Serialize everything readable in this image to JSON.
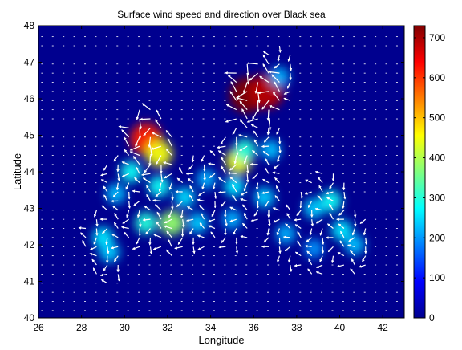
{
  "chart_data": {
    "type": "heatmap",
    "title": "Surface wind speed and direction over Black sea",
    "xlabel": "Longitude",
    "ylabel": "Latitude",
    "xlim": [
      26,
      43
    ],
    "ylim": [
      40,
      48
    ],
    "xticks": [
      26,
      28,
      30,
      32,
      34,
      36,
      38,
      40,
      42
    ],
    "yticks": [
      40,
      41,
      42,
      43,
      44,
      45,
      46,
      47,
      48
    ],
    "colorbar": {
      "min": 0,
      "max": 730,
      "ticks": [
        0,
        100,
        200,
        300,
        400,
        500,
        600,
        700
      ],
      "colormap": "jet"
    },
    "overlay": "wind direction arrows (white)",
    "grid": false,
    "colors": {
      "background_low": "#00008f",
      "arrow": "#ffffff"
    },
    "hotspots": [
      {
        "lon": 31.0,
        "lat": 44.9,
        "value": 620
      },
      {
        "lon": 31.6,
        "lat": 44.5,
        "value": 450
      },
      {
        "lon": 30.3,
        "lat": 44.0,
        "value": 280
      },
      {
        "lon": 29.6,
        "lat": 43.4,
        "value": 230
      },
      {
        "lon": 29.0,
        "lat": 42.2,
        "value": 260
      },
      {
        "lon": 29.3,
        "lat": 41.8,
        "value": 240
      },
      {
        "lon": 31.0,
        "lat": 42.6,
        "value": 300
      },
      {
        "lon": 32.2,
        "lat": 42.6,
        "value": 380
      },
      {
        "lon": 32.8,
        "lat": 43.3,
        "value": 250
      },
      {
        "lon": 31.6,
        "lat": 43.6,
        "value": 280
      },
      {
        "lon": 33.4,
        "lat": 42.6,
        "value": 240
      },
      {
        "lon": 33.8,
        "lat": 43.8,
        "value": 220
      },
      {
        "lon": 35.1,
        "lat": 43.6,
        "value": 260
      },
      {
        "lon": 35.3,
        "lat": 44.3,
        "value": 440
      },
      {
        "lon": 35.6,
        "lat": 44.6,
        "value": 300
      },
      {
        "lon": 35.0,
        "lat": 42.7,
        "value": 220
      },
      {
        "lon": 36.5,
        "lat": 43.3,
        "value": 240
      },
      {
        "lon": 36.8,
        "lat": 44.6,
        "value": 230
      },
      {
        "lon": 37.5,
        "lat": 42.3,
        "value": 220
      },
      {
        "lon": 38.8,
        "lat": 43.0,
        "value": 240
      },
      {
        "lon": 39.6,
        "lat": 43.2,
        "value": 280
      },
      {
        "lon": 40.1,
        "lat": 42.4,
        "value": 260
      },
      {
        "lon": 40.7,
        "lat": 42.0,
        "value": 230
      },
      {
        "lon": 38.8,
        "lat": 41.9,
        "value": 200
      },
      {
        "lon": 35.7,
        "lat": 46.1,
        "value": 730
      },
      {
        "lon": 36.6,
        "lat": 46.2,
        "value": 690
      },
      {
        "lon": 37.2,
        "lat": 46.6,
        "value": 220
      }
    ]
  }
}
